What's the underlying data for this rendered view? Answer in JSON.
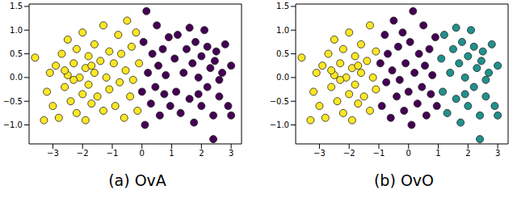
{
  "chart_data": [
    {
      "type": "scatter",
      "title": "(a) OvA",
      "xlim": [
        -3.8,
        3.35
      ],
      "ylim": [
        -1.4,
        1.55
      ],
      "xticks": [
        {
          "value": -3,
          "label": "−3"
        },
        {
          "value": -2,
          "label": "−2"
        },
        {
          "value": -1,
          "label": "−1"
        },
        0,
        1,
        2,
        3
      ],
      "yticks": [
        {
          "value": -1.0,
          "label": "−1.0"
        },
        {
          "value": -0.5,
          "label": "−0.5"
        },
        {
          "value": 0,
          "label": "0.0"
        },
        {
          "value": 0.5,
          "label": "0.5"
        },
        {
          "value": 1.0,
          "label": "1.0"
        },
        {
          "value": 1.5,
          "label": "1.5"
        }
      ],
      "marker": "circle",
      "series": [
        {
          "color": "#fde725",
          "x": [
            -3.6,
            -3.2,
            -3.1,
            -3.0,
            -2.9,
            -2.8,
            -2.7,
            -2.6,
            -2.5,
            -2.5,
            -2.4,
            -2.3,
            -2.2,
            -2.2,
            -2.1,
            -2.0,
            -2.0,
            -1.9,
            -1.9,
            -1.8,
            -1.8,
            -1.7,
            -1.6,
            -1.6,
            -1.5,
            -1.4,
            -1.3,
            -1.3,
            -1.2,
            -1.1,
            -1.1,
            -2.3,
            -2.6,
            -1.7,
            -3.3,
            -0.95,
            -0.9,
            -0.8,
            -0.75,
            -0.7,
            -0.6,
            -0.55,
            -0.5,
            -0.4,
            -0.35,
            -0.3,
            -0.2,
            -0.15,
            -0.1
          ],
          "values": [
            0.42,
            -0.3,
            0.1,
            -0.6,
            0.25,
            -0.85,
            0.5,
            -0.2,
            0.8,
            0.05,
            -0.5,
            0.3,
            -0.75,
            0.6,
            0.0,
            -0.35,
            0.95,
            0.2,
            -0.9,
            0.45,
            -0.15,
            -0.55,
            0.7,
            0.1,
            -0.4,
            0.35,
            -0.7,
            1.1,
            0.0,
            0.55,
            -0.25,
            -0.05,
            0.15,
            0.25,
            -0.9,
            0.3,
            -0.6,
            0.9,
            -0.1,
            0.5,
            -0.85,
            0.15,
            1.2,
            -0.4,
            0.65,
            -0.05,
            0.95,
            -0.7,
            0.3
          ]
        },
        {
          "color": "#440154",
          "x": [
            0.0,
            0.05,
            0.1,
            0.15,
            0.2,
            0.3,
            0.35,
            0.45,
            0.5,
            0.55,
            0.6,
            0.7,
            0.75,
            0.8,
            0.9,
            0.95,
            1.1,
            1.15,
            1.2,
            1.3,
            1.4,
            1.5,
            1.6,
            1.7,
            1.75,
            1.8,
            1.9,
            2.0,
            2.0,
            2.1,
            2.2,
            2.3,
            2.4,
            2.4,
            2.5,
            2.6,
            2.7,
            2.8,
            2.9,
            3.0,
            3.0,
            2.2,
            1.6,
            2.6,
            1.9,
            2.45
          ],
          "values": [
            -0.3,
            0.75,
            -1.0,
            1.4,
            0.1,
            -0.55,
            0.5,
            -0.2,
            1.1,
            0.25,
            -0.8,
            0.6,
            -0.35,
            0.05,
            0.85,
            -0.6,
            0.4,
            -0.3,
            0.9,
            -0.75,
            0.1,
            0.6,
            -0.45,
            0.3,
            -0.95,
            0.75,
            0.0,
            -0.6,
            0.45,
            1.0,
            -0.2,
            0.2,
            -0.8,
            -1.3,
            0.55,
            -0.4,
            0.1,
            0.7,
            -0.6,
            0.25,
            -0.8,
            0.65,
            1.05,
            -0.05,
            -0.35,
            0.35
          ]
        }
      ]
    },
    {
      "type": "scatter",
      "title": "(b) OvO",
      "xlim": [
        -3.8,
        3.35
      ],
      "ylim": [
        -1.4,
        1.55
      ],
      "xticks": [
        {
          "value": -3,
          "label": "−3"
        },
        {
          "value": -2,
          "label": "−2"
        },
        {
          "value": -1,
          "label": "−1"
        },
        0,
        1,
        2,
        3
      ],
      "yticks": [
        {
          "value": -1.0,
          "label": "−1.0"
        },
        {
          "value": -0.5,
          "label": "−0.5"
        },
        {
          "value": 0,
          "label": "0.0"
        },
        {
          "value": 0.5,
          "label": "0.5"
        },
        {
          "value": 1.0,
          "label": "1.0"
        },
        {
          "value": 1.5,
          "label": "1.5"
        }
      ],
      "marker": "circle",
      "series": [
        {
          "color": "#fde725",
          "x": [
            -3.6,
            -3.2,
            -3.1,
            -3.0,
            -2.9,
            -2.8,
            -2.7,
            -2.6,
            -2.5,
            -2.5,
            -2.4,
            -2.3,
            -2.2,
            -2.2,
            -2.1,
            -2.0,
            -2.0,
            -1.9,
            -1.9,
            -1.8,
            -1.8,
            -1.7,
            -1.6,
            -1.6,
            -1.5,
            -1.4,
            -1.3,
            -1.3,
            -1.2,
            -1.1,
            -1.1,
            -2.3,
            -2.6,
            -1.7,
            -3.3
          ],
          "values": [
            0.42,
            -0.3,
            0.1,
            -0.6,
            0.25,
            -0.85,
            0.5,
            -0.2,
            0.8,
            0.05,
            -0.5,
            0.3,
            -0.75,
            0.6,
            0.0,
            -0.35,
            0.95,
            0.2,
            -0.9,
            0.45,
            -0.15,
            -0.55,
            0.7,
            0.1,
            -0.4,
            0.35,
            -0.7,
            1.1,
            0.0,
            0.55,
            -0.25,
            -0.05,
            0.15,
            0.25,
            -0.9
          ]
        },
        {
          "color": "#440154",
          "x": [
            -0.95,
            -0.9,
            -0.8,
            -0.75,
            -0.7,
            -0.6,
            -0.55,
            -0.5,
            -0.4,
            -0.35,
            -0.3,
            -0.2,
            -0.15,
            -0.1,
            0.0,
            0.05,
            0.1,
            0.15,
            0.2,
            0.3,
            0.35,
            0.45,
            0.5,
            0.55,
            0.6,
            0.7,
            0.75,
            0.8,
            0.9,
            0.95
          ],
          "values": [
            0.3,
            -0.6,
            0.9,
            -0.1,
            0.5,
            -0.85,
            0.15,
            1.2,
            -0.4,
            0.65,
            -0.05,
            0.95,
            -0.7,
            0.3,
            -0.3,
            0.75,
            -1.0,
            1.4,
            0.1,
            -0.55,
            0.5,
            -0.2,
            1.1,
            0.25,
            -0.8,
            0.6,
            -0.35,
            0.05,
            0.85,
            -0.6
          ]
        },
        {
          "color": "#21918c",
          "x": [
            1.1,
            1.15,
            1.2,
            1.3,
            1.4,
            1.5,
            1.6,
            1.7,
            1.75,
            1.8,
            1.9,
            2.0,
            2.0,
            2.1,
            2.2,
            2.3,
            2.4,
            2.4,
            2.5,
            2.6,
            2.7,
            2.8,
            2.9,
            3.0,
            3.0,
            2.2,
            1.6,
            2.6,
            1.9,
            2.45
          ],
          "values": [
            0.4,
            -0.3,
            0.9,
            -0.75,
            0.1,
            0.6,
            -0.45,
            0.3,
            -0.95,
            0.75,
            0.0,
            -0.6,
            0.45,
            1.0,
            -0.2,
            0.2,
            -0.8,
            -1.3,
            0.55,
            -0.4,
            0.1,
            0.7,
            -0.6,
            0.25,
            -0.8,
            0.65,
            1.05,
            -0.05,
            -0.35,
            0.35
          ]
        }
      ]
    }
  ]
}
